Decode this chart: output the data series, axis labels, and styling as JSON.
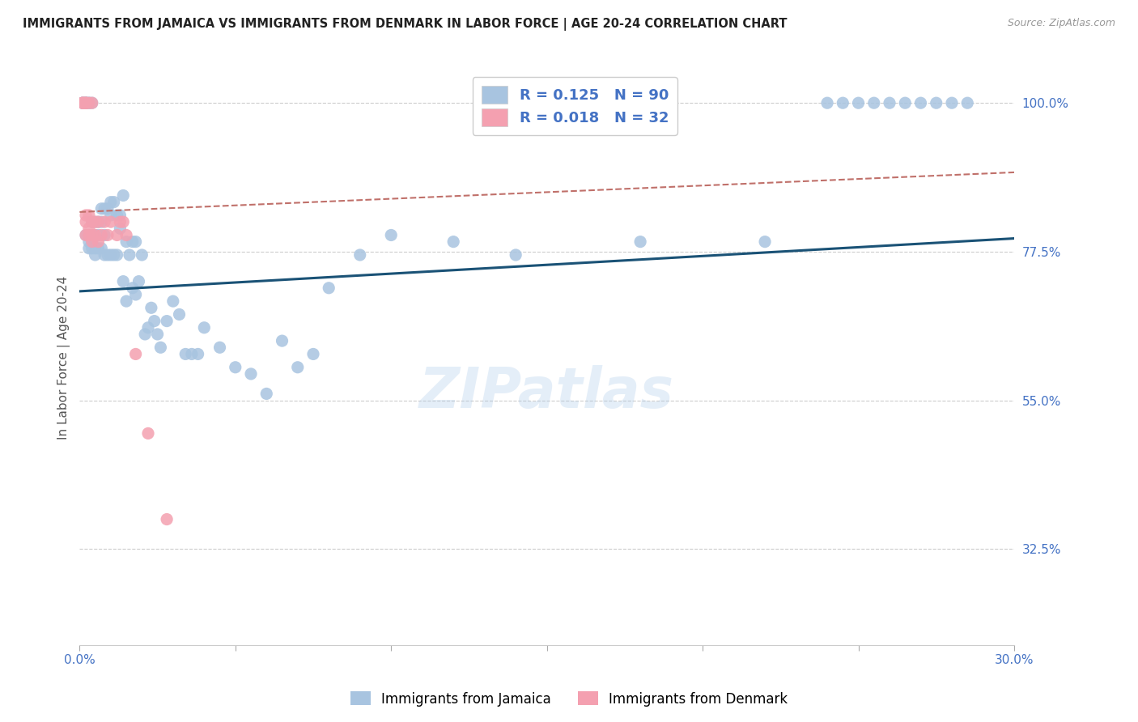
{
  "title": "IMMIGRANTS FROM JAMAICA VS IMMIGRANTS FROM DENMARK IN LABOR FORCE | AGE 20-24 CORRELATION CHART",
  "source": "Source: ZipAtlas.com",
  "ylabel": "In Labor Force | Age 20-24",
  "xlim": [
    0.0,
    0.3
  ],
  "ylim": [
    0.18,
    1.05
  ],
  "ytick_positions": [
    1.0,
    0.775,
    0.55,
    0.325
  ],
  "yticklabels": [
    "100.0%",
    "77.5%",
    "55.0%",
    "32.5%"
  ],
  "title_color": "#222222",
  "axis_color": "#4472c4",
  "grid_color": "#cccccc",
  "watermark": "ZIPatlas",
  "jamaica_color": "#a8c4e0",
  "denmark_color": "#f4a0b0",
  "jamaica_line_color": "#1a5276",
  "denmark_line_color": "#c0706a",
  "legend_R_jamaica": "R = 0.125",
  "legend_N_jamaica": "N = 90",
  "legend_R_denmark": "R = 0.018",
  "legend_N_denmark": "N = 32",
  "jamaica_x": [
    0.001,
    0.001,
    0.001,
    0.002,
    0.002,
    0.002,
    0.002,
    0.002,
    0.003,
    0.003,
    0.003,
    0.003,
    0.003,
    0.004,
    0.004,
    0.004,
    0.004,
    0.004,
    0.005,
    0.005,
    0.005,
    0.005,
    0.006,
    0.006,
    0.006,
    0.007,
    0.007,
    0.007,
    0.008,
    0.008,
    0.008,
    0.009,
    0.009,
    0.01,
    0.01,
    0.01,
    0.011,
    0.011,
    0.012,
    0.012,
    0.013,
    0.013,
    0.014,
    0.014,
    0.015,
    0.015,
    0.016,
    0.017,
    0.017,
    0.018,
    0.018,
    0.019,
    0.02,
    0.021,
    0.022,
    0.023,
    0.024,
    0.025,
    0.026,
    0.028,
    0.03,
    0.032,
    0.034,
    0.036,
    0.038,
    0.04,
    0.045,
    0.05,
    0.055,
    0.06,
    0.065,
    0.07,
    0.075,
    0.08,
    0.09,
    0.1,
    0.12,
    0.14,
    0.18,
    0.22,
    0.24,
    0.245,
    0.25,
    0.255,
    0.26,
    0.265,
    0.27,
    0.275,
    0.28,
    0.285
  ],
  "jamaica_y": [
    1.0,
    1.0,
    1.0,
    1.0,
    1.0,
    1.0,
    1.0,
    0.8,
    1.0,
    1.0,
    0.8,
    0.79,
    0.78,
    1.0,
    0.82,
    0.8,
    0.79,
    0.78,
    0.82,
    0.8,
    0.78,
    0.77,
    0.82,
    0.8,
    0.78,
    0.84,
    0.82,
    0.78,
    0.84,
    0.8,
    0.77,
    0.84,
    0.77,
    0.85,
    0.83,
    0.77,
    0.85,
    0.77,
    0.83,
    0.77,
    0.83,
    0.81,
    0.86,
    0.73,
    0.79,
    0.7,
    0.77,
    0.79,
    0.72,
    0.79,
    0.71,
    0.73,
    0.77,
    0.65,
    0.66,
    0.69,
    0.67,
    0.65,
    0.63,
    0.67,
    0.7,
    0.68,
    0.62,
    0.62,
    0.62,
    0.66,
    0.63,
    0.6,
    0.59,
    0.56,
    0.64,
    0.6,
    0.62,
    0.72,
    0.77,
    0.8,
    0.79,
    0.77,
    0.79,
    0.79,
    1.0,
    1.0,
    1.0,
    1.0,
    1.0,
    1.0,
    1.0,
    1.0,
    1.0,
    1.0
  ],
  "denmark_x": [
    0.001,
    0.001,
    0.001,
    0.002,
    0.002,
    0.002,
    0.002,
    0.002,
    0.002,
    0.003,
    0.003,
    0.003,
    0.003,
    0.004,
    0.004,
    0.004,
    0.004,
    0.005,
    0.005,
    0.006,
    0.006,
    0.007,
    0.008,
    0.009,
    0.01,
    0.012,
    0.013,
    0.014,
    0.015,
    0.018,
    0.022,
    0.028
  ],
  "denmark_y": [
    1.0,
    1.0,
    1.0,
    1.0,
    1.0,
    1.0,
    0.83,
    0.82,
    0.8,
    1.0,
    0.83,
    0.81,
    0.8,
    1.0,
    0.82,
    0.8,
    0.79,
    0.82,
    0.8,
    0.82,
    0.79,
    0.8,
    0.82,
    0.8,
    0.82,
    0.8,
    0.82,
    0.82,
    0.8,
    0.62,
    0.5,
    0.37
  ],
  "jamaica_trend_x0": 0.0,
  "jamaica_trend_y0": 0.715,
  "jamaica_trend_x1": 0.3,
  "jamaica_trend_y1": 0.795,
  "denmark_trend_x0": 0.0,
  "denmark_trend_y0": 0.835,
  "denmark_trend_x1": 0.3,
  "denmark_trend_y1": 0.895
}
